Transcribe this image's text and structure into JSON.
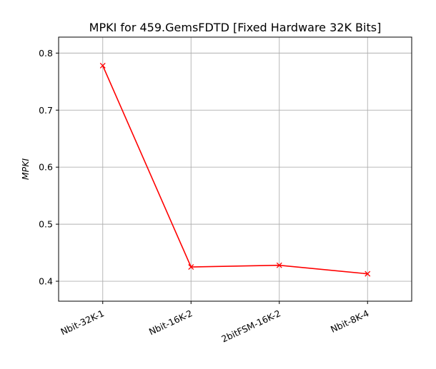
{
  "chart_data": {
    "type": "line",
    "title": "MPKI for 459.GemsFDTD [Fixed Hardware 32K Bits]",
    "xlabel": "",
    "ylabel": "MPKI",
    "categories": [
      "Nbit-32K-1",
      "Nbit-16K-2",
      "2bitFSM-16K-2",
      "Nbit-8K-4"
    ],
    "series": [
      {
        "name": "MPKI",
        "values": [
          0.778,
          0.425,
          0.428,
          0.413
        ],
        "color": "#ff0000",
        "marker": "x"
      }
    ],
    "ylim": [
      0.365,
      0.828
    ],
    "yticks": [
      0.4,
      0.5,
      0.6,
      0.7,
      0.8
    ],
    "ytick_labels": [
      "0.4",
      "0.5",
      "0.6",
      "0.7",
      "0.8"
    ],
    "grid": true
  }
}
